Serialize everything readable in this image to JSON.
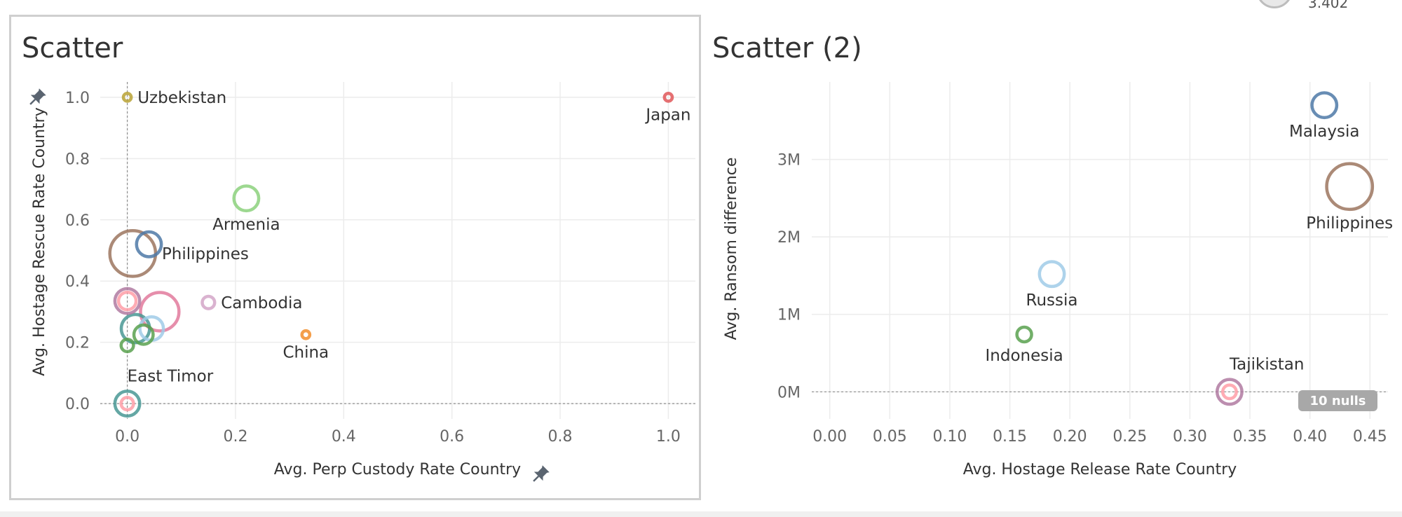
{
  "size_legend": {
    "value": "3.402"
  },
  "charts": {
    "left": {
      "title": "Scatter"
    },
    "right": {
      "title": "Scatter (2)"
    }
  },
  "colors": {
    "grid": "#ececec",
    "axis_text": "#666666",
    "label_text": "#333333",
    "pin": "#5a6470",
    "nulls_badge_bg": "#a8a8a8",
    "nulls_badge_text": "#ffffff"
  },
  "chart_data": [
    {
      "type": "scatter",
      "title": "Scatter",
      "xlabel": "Avg. Perp Custody Rate Country",
      "ylabel": "Avg. Hostage Rescue Rate Country",
      "xlim": [
        -0.05,
        1.05
      ],
      "ylim": [
        -0.05,
        1.05
      ],
      "x_ticks": [
        0.0,
        0.2,
        0.4,
        0.6,
        0.8,
        1.0
      ],
      "x_tick_labels": [
        "0.0",
        "0.2",
        "0.4",
        "0.6",
        "0.8",
        "1.0"
      ],
      "y_ticks": [
        0.0,
        0.2,
        0.4,
        0.6,
        0.8,
        1.0
      ],
      "y_tick_labels": [
        "0.0",
        "0.2",
        "0.4",
        "0.6",
        "0.8",
        "1.0"
      ],
      "grid": true,
      "reference_lines": {
        "x": 0.0,
        "y": 0.0
      },
      "pinned_axes": [
        "x",
        "y"
      ],
      "points": [
        {
          "label": "Uzbekistan",
          "x": 0.0,
          "y": 1.0,
          "size": 0.1,
          "color": "#b8a235",
          "label_pos": "right"
        },
        {
          "label": "Japan",
          "x": 1.0,
          "y": 1.0,
          "size": 0.1,
          "color": "#e15759",
          "label_pos": "below"
        },
        {
          "label": "Armenia",
          "x": 0.22,
          "y": 0.67,
          "size": 1.0,
          "color": "#8cd17d",
          "label_pos": "below"
        },
        {
          "label": "",
          "x": 0.04,
          "y": 0.52,
          "size": 1.0,
          "color": "#4e79a7"
        },
        {
          "label": "Philippines",
          "x": 0.01,
          "y": 0.49,
          "size": 3.4,
          "color": "#9c755f",
          "label_pos": "right"
        },
        {
          "label": "Cambodia",
          "x": 0.15,
          "y": 0.33,
          "size": 0.25,
          "color": "#d4a6c8",
          "label_pos": "right"
        },
        {
          "label": "",
          "x": 0.0,
          "y": 0.335,
          "size": 1.0,
          "color": "#b07aa1"
        },
        {
          "label": "",
          "x": 0.0,
          "y": 0.335,
          "size": 0.5,
          "color": "#ff9da7"
        },
        {
          "label": "",
          "x": 0.06,
          "y": 0.3,
          "size": 2.4,
          "color": "#e27a9c"
        },
        {
          "label": "",
          "x": 0.045,
          "y": 0.245,
          "size": 0.9,
          "color": "#a0cbe8"
        },
        {
          "label": "",
          "x": 0.015,
          "y": 0.245,
          "size": 1.3,
          "color": "#499894"
        },
        {
          "label": "",
          "x": 0.03,
          "y": 0.225,
          "size": 0.6,
          "color": "#59a14f"
        },
        {
          "label": "",
          "x": 0.0,
          "y": 0.19,
          "size": 0.25,
          "color": "#59a14f"
        },
        {
          "label": "China",
          "x": 0.33,
          "y": 0.225,
          "size": 0.1,
          "color": "#f28e2b",
          "label_pos": "below"
        },
        {
          "label": "East Timor",
          "x": 0.0,
          "y": 0.0,
          "size": 1.0,
          "color": "#499894",
          "label_pos": "above-right"
        },
        {
          "label": "",
          "x": 0.0,
          "y": 0.0,
          "size": 0.25,
          "color": "#ff9da7"
        }
      ]
    },
    {
      "type": "scatter",
      "title": "Scatter (2)",
      "xlabel": "Avg. Hostage Release Rate Country",
      "ylabel": "Avg. Ransom difference",
      "xlim": [
        -0.015,
        0.465
      ],
      "ylim": [
        -350000,
        4000000
      ],
      "x_ticks": [
        0.0,
        0.05,
        0.1,
        0.15,
        0.2,
        0.25,
        0.3,
        0.35,
        0.4,
        0.45
      ],
      "x_tick_labels": [
        "0.00",
        "0.05",
        "0.10",
        "0.15",
        "0.20",
        "0.25",
        "0.30",
        "0.35",
        "0.40",
        "0.45"
      ],
      "y_ticks": [
        0,
        1000000,
        2000000,
        3000000
      ],
      "y_tick_labels": [
        "0M",
        "1M",
        "2M",
        "3M"
      ],
      "grid": true,
      "reference_lines": {
        "y": 0
      },
      "nulls_badge": "10 nulls",
      "points": [
        {
          "label": "Malaysia",
          "x": 0.412,
          "y": 3700000,
          "size": 1.0,
          "color": "#4e79a7",
          "label_pos": "below"
        },
        {
          "label": "Philippines",
          "x": 0.433,
          "y": 2650000,
          "size": 3.4,
          "color": "#9c755f",
          "label_pos": "below"
        },
        {
          "label": "Russia",
          "x": 0.185,
          "y": 1520000,
          "size": 1.0,
          "color": "#a0cbe8",
          "label_pos": "below"
        },
        {
          "label": "Indonesia",
          "x": 0.162,
          "y": 740000,
          "size": 0.35,
          "color": "#59a14f",
          "label_pos": "below"
        },
        {
          "label": "Tajikistan",
          "x": 0.333,
          "y": 0,
          "size": 1.0,
          "color": "#b07aa1",
          "label_pos": "above-right"
        },
        {
          "label": "",
          "x": 0.333,
          "y": 0,
          "size": 0.3,
          "color": "#ff9da7"
        }
      ]
    }
  ]
}
